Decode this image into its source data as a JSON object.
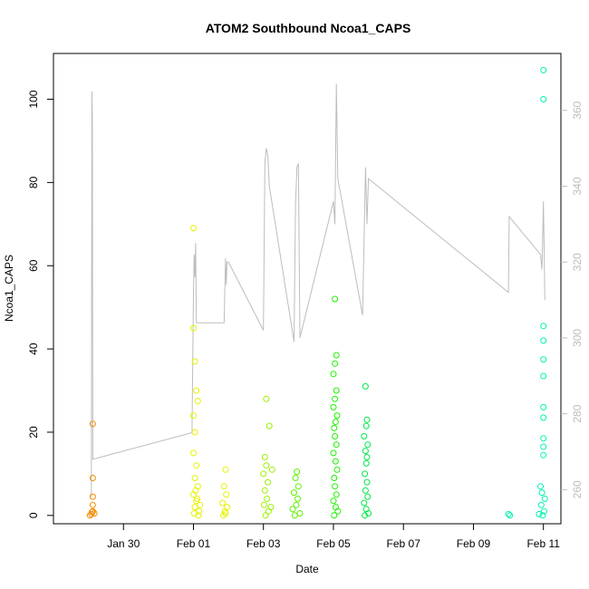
{
  "chart_data": {
    "type": "scatter",
    "title": "ATOM2 Southbound Ncoa1_CAPS",
    "xlabel": "Date",
    "ylabel": "Ncoa1_CAPS",
    "x_unit": "date",
    "xlim": [
      "2025-01-28T00:00",
      "2025-02-11T12:00"
    ],
    "ylim": [
      -2,
      111
    ],
    "y_ticks": [
      0,
      20,
      40,
      60,
      80,
      100
    ],
    "x_ticks": [
      {
        "date": "2025-01-30",
        "label": "Jan 30"
      },
      {
        "date": "2025-02-01",
        "label": "Feb 01"
      },
      {
        "date": "2025-02-03",
        "label": "Feb 03"
      },
      {
        "date": "2025-02-05",
        "label": "Feb 05"
      },
      {
        "date": "2025-02-07",
        "label": "Feb 07"
      },
      {
        "date": "2025-02-09",
        "label": "Feb 09"
      },
      {
        "date": "2025-02-11",
        "label": "Feb 11"
      }
    ],
    "y2lim": [
      251,
      375
    ],
    "y2_ticks": [
      260,
      280,
      300,
      320,
      340,
      360
    ],
    "grid": false,
    "legend": "none",
    "series": [
      {
        "color": "#F28C00",
        "points": [
          [
            "2025-01-29T03:00",
            22
          ],
          [
            "2025-01-29T03:00",
            9
          ],
          [
            "2025-01-29T03:00",
            4.5
          ],
          [
            "2025-01-29T03:00",
            2.5
          ],
          [
            "2025-01-29T03:00",
            1
          ],
          [
            "2025-01-29T02:00",
            0.3
          ],
          [
            "2025-01-29T01:00",
            0
          ],
          [
            "2025-01-29T04:00",
            0.5
          ],
          [
            "2025-01-29T02:30",
            0.8
          ]
        ]
      },
      {
        "color": "#E6F200",
        "points": [
          [
            "2025-02-01T00:00",
            69
          ],
          [
            "2025-02-01T00:00",
            45
          ],
          [
            "2025-02-01T01:00",
            37
          ],
          [
            "2025-02-01T02:00",
            30
          ],
          [
            "2025-02-01T03:00",
            27.5
          ],
          [
            "2025-02-01T00:00",
            24
          ],
          [
            "2025-02-01T01:00",
            20
          ],
          [
            "2025-02-01T00:00",
            15
          ],
          [
            "2025-02-01T02:00",
            12
          ],
          [
            "2025-02-01T01:00",
            9
          ],
          [
            "2025-02-01T03:00",
            7
          ],
          [
            "2025-02-01T00:00",
            5
          ],
          [
            "2025-02-01T02:00",
            3.5
          ],
          [
            "2025-02-01T01:00",
            2
          ],
          [
            "2025-02-01T04:00",
            1
          ],
          [
            "2025-02-01T00:30",
            0.5
          ],
          [
            "2025-02-01T03:30",
            0
          ],
          [
            "2025-02-01T01:30",
            6
          ],
          [
            "2025-02-01T02:30",
            4
          ],
          [
            "2025-02-01T04:30",
            2.5
          ],
          [
            "2025-02-01T22:00",
            11
          ],
          [
            "2025-02-01T21:00",
            7
          ],
          [
            "2025-02-01T22:30",
            5
          ],
          [
            "2025-02-01T20:00",
            3
          ],
          [
            "2025-02-01T23:00",
            2
          ],
          [
            "2025-02-01T21:30",
            1
          ],
          [
            "2025-02-01T22:00",
            0.5
          ],
          [
            "2025-02-01T20:30",
            0
          ]
        ]
      },
      {
        "color": "#9BF200",
        "points": [
          [
            "2025-02-03T02:00",
            28
          ],
          [
            "2025-02-03T04:00",
            21.5
          ],
          [
            "2025-02-03T01:00",
            14
          ],
          [
            "2025-02-03T02:00",
            12
          ],
          [
            "2025-02-03T00:00",
            10
          ],
          [
            "2025-02-03T03:00",
            8
          ],
          [
            "2025-02-03T01:00",
            6
          ],
          [
            "2025-02-03T02:30",
            4
          ],
          [
            "2025-02-03T00:30",
            2.5
          ],
          [
            "2025-02-03T03:30",
            1
          ],
          [
            "2025-02-03T01:30",
            0
          ],
          [
            "2025-02-03T06:00",
            11
          ],
          [
            "2025-02-03T05:00",
            2
          ]
        ]
      },
      {
        "color": "#5EF200",
        "points": [
          [
            "2025-02-03T23:00",
            10.5
          ],
          [
            "2025-02-03T22:00",
            9
          ],
          [
            "2025-02-04T00:00",
            7
          ],
          [
            "2025-02-03T21:00",
            5.5
          ],
          [
            "2025-02-03T23:30",
            4
          ],
          [
            "2025-02-03T22:30",
            2.5
          ],
          [
            "2025-02-03T20:00",
            1.5
          ],
          [
            "2025-02-04T01:00",
            0.5
          ],
          [
            "2025-02-03T21:30",
            0
          ]
        ]
      },
      {
        "color": "#1EF200",
        "points": [
          [
            "2025-02-05T01:00",
            52
          ],
          [
            "2025-02-05T02:00",
            38.5
          ],
          [
            "2025-02-05T01:00",
            36.5
          ],
          [
            "2025-02-05T00:00",
            34
          ],
          [
            "2025-02-05T02:00",
            30
          ],
          [
            "2025-02-05T01:00",
            28
          ],
          [
            "2025-02-05T00:00",
            26
          ],
          [
            "2025-02-05T02:30",
            24
          ],
          [
            "2025-02-05T01:30",
            22.5
          ],
          [
            "2025-02-05T00:30",
            21
          ],
          [
            "2025-02-05T01:00",
            19
          ],
          [
            "2025-02-05T02:00",
            17
          ],
          [
            "2025-02-05T00:00",
            15
          ],
          [
            "2025-02-05T01:30",
            13
          ],
          [
            "2025-02-05T02:30",
            11
          ],
          [
            "2025-02-05T00:30",
            9
          ],
          [
            "2025-02-05T01:00",
            7
          ],
          [
            "2025-02-05T02:00",
            5
          ],
          [
            "2025-02-05T00:00",
            3.5
          ],
          [
            "2025-02-05T01:30",
            2
          ],
          [
            "2025-02-05T03:00",
            1
          ],
          [
            "2025-02-05T00:30",
            0
          ]
        ]
      },
      {
        "color": "#00E84A",
        "points": [
          [
            "2025-02-05T22:00",
            31
          ],
          [
            "2025-02-05T23:00",
            23
          ],
          [
            "2025-02-05T22:30",
            21.5
          ],
          [
            "2025-02-05T21:00",
            19
          ],
          [
            "2025-02-05T23:30",
            17
          ],
          [
            "2025-02-05T22:00",
            15.5
          ],
          [
            "2025-02-05T23:00",
            14
          ],
          [
            "2025-02-05T22:30",
            12.5
          ],
          [
            "2025-02-05T21:30",
            10
          ],
          [
            "2025-02-05T23:00",
            8
          ],
          [
            "2025-02-05T22:00",
            6
          ],
          [
            "2025-02-05T23:30",
            4.5
          ],
          [
            "2025-02-05T21:00",
            3
          ],
          [
            "2025-02-05T22:30",
            1.5
          ],
          [
            "2025-02-06T00:00",
            0.5
          ],
          [
            "2025-02-05T21:30",
            0
          ]
        ]
      },
      {
        "color": "#00F2B2",
        "points": [
          [
            "2025-02-10T00:00",
            0.3
          ],
          [
            "2025-02-10T01:00",
            0
          ],
          [
            "2025-02-11T00:00",
            107
          ],
          [
            "2025-02-11T00:00",
            100
          ],
          [
            "2025-02-11T00:00",
            45.5
          ],
          [
            "2025-02-11T00:00",
            42
          ],
          [
            "2025-02-11T00:00",
            37.5
          ],
          [
            "2025-02-11T00:00",
            33.5
          ],
          [
            "2025-02-11T00:00",
            26
          ],
          [
            "2025-02-11T00:00",
            23.5
          ],
          [
            "2025-02-11T00:00",
            18.5
          ],
          [
            "2025-02-11T00:00",
            16.5
          ],
          [
            "2025-02-11T00:00",
            14.5
          ],
          [
            "2025-02-10T22:00",
            7
          ],
          [
            "2025-02-10T23:00",
            5.5
          ],
          [
            "2025-02-11T01:00",
            4
          ],
          [
            "2025-02-10T22:30",
            2.5
          ],
          [
            "2025-02-11T00:30",
            1
          ],
          [
            "2025-02-10T21:00",
            0.3
          ],
          [
            "2025-02-10T23:30",
            0
          ]
        ]
      }
    ],
    "line_series": {
      "color": "#bdbdbd",
      "axis": "right",
      "points": [
        [
          "2025-01-29T02:00",
          258
        ],
        [
          "2025-01-29T02:20",
          365
        ],
        [
          "2025-01-29T02:40",
          358
        ],
        [
          "2025-01-29T03:00",
          268
        ],
        [
          "2025-01-31T23:00",
          275
        ],
        [
          "2025-02-01T00:00",
          312
        ],
        [
          "2025-02-01T00:30",
          322
        ],
        [
          "2025-02-01T01:00",
          316
        ],
        [
          "2025-02-01T01:30",
          325
        ],
        [
          "2025-02-01T02:00",
          304
        ],
        [
          "2025-02-01T21:00",
          304
        ],
        [
          "2025-02-01T22:00",
          321
        ],
        [
          "2025-02-01T22:30",
          314
        ],
        [
          "2025-02-01T23:00",
          320
        ],
        [
          "2025-02-02T00:00",
          320
        ],
        [
          "2025-02-03T00:00",
          302
        ],
        [
          "2025-02-03T01:00",
          346
        ],
        [
          "2025-02-03T02:00",
          350
        ],
        [
          "2025-02-03T03:00",
          348
        ],
        [
          "2025-02-03T04:00",
          340
        ],
        [
          "2025-02-03T21:00",
          299
        ],
        [
          "2025-02-03T22:00",
          335
        ],
        [
          "2025-02-03T23:00",
          345
        ],
        [
          "2025-02-04T00:00",
          346
        ],
        [
          "2025-02-04T01:00",
          300
        ],
        [
          "2025-02-05T00:00",
          336
        ],
        [
          "2025-02-05T01:00",
          330
        ],
        [
          "2025-02-05T02:00",
          367
        ],
        [
          "2025-02-05T03:00",
          342
        ],
        [
          "2025-02-05T20:00",
          306
        ],
        [
          "2025-02-05T22:00",
          345
        ],
        [
          "2025-02-05T23:00",
          330
        ],
        [
          "2025-02-06T00:00",
          342
        ],
        [
          "2025-02-10T00:00",
          312
        ],
        [
          "2025-02-10T00:30",
          332
        ],
        [
          "2025-02-10T22:00",
          322
        ],
        [
          "2025-02-10T23:00",
          318
        ],
        [
          "2025-02-11T00:00",
          336
        ],
        [
          "2025-02-11T01:00",
          310
        ]
      ]
    }
  }
}
